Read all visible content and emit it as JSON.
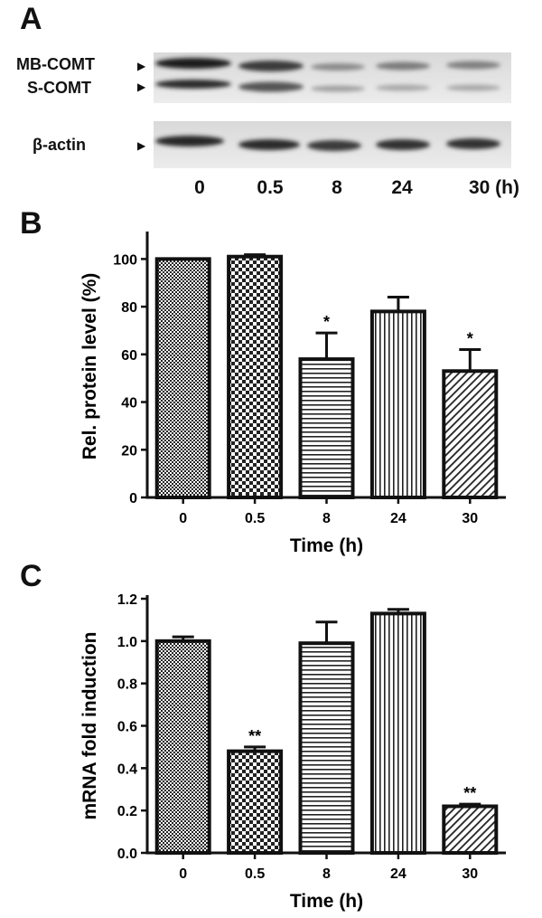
{
  "panels": {
    "a": "A",
    "b": "B",
    "c": "C"
  },
  "blot": {
    "bands": [
      "MB-COMT",
      "S-COMT",
      "β-actin"
    ],
    "lanes": [
      "0",
      "0.5",
      "8",
      "24",
      "30 (h)"
    ]
  },
  "chart_data": [
    {
      "type": "bar",
      "categories": [
        "0",
        "0.5",
        "8",
        "24",
        "30"
      ],
      "values": [
        100,
        101,
        58,
        78,
        53
      ],
      "errors": [
        0,
        0.8,
        11,
        6,
        9
      ],
      "significance": [
        "",
        "",
        "*",
        "",
        "*"
      ],
      "xlabel": "Time (h)",
      "ylabel": "Rel. protein level (%)",
      "ylim": [
        0,
        110
      ],
      "yticks": [
        "0",
        "20",
        "40",
        "60",
        "80",
        "100"
      ],
      "patterns": [
        "fine-check",
        "coarse-check",
        "horizontal-stripes",
        "vertical-stripes",
        "diagonal-stripes"
      ]
    },
    {
      "type": "bar",
      "categories": [
        "0",
        "0.5",
        "8",
        "24",
        "30"
      ],
      "values": [
        1.0,
        0.48,
        0.99,
        1.13,
        0.22
      ],
      "errors": [
        0.02,
        0.02,
        0.1,
        0.02,
        0.01
      ],
      "significance": [
        "",
        "**",
        "",
        "",
        "**"
      ],
      "xlabel": "Time (h)",
      "ylabel": "mRNA fold induction",
      "ylim": [
        0,
        1.2
      ],
      "yticks": [
        "0.0",
        "0.2",
        "0.4",
        "0.6",
        "0.8",
        "1.0",
        "1.2"
      ],
      "patterns": [
        "fine-check",
        "coarse-check",
        "horizontal-stripes",
        "vertical-stripes",
        "diagonal-stripes"
      ]
    }
  ]
}
